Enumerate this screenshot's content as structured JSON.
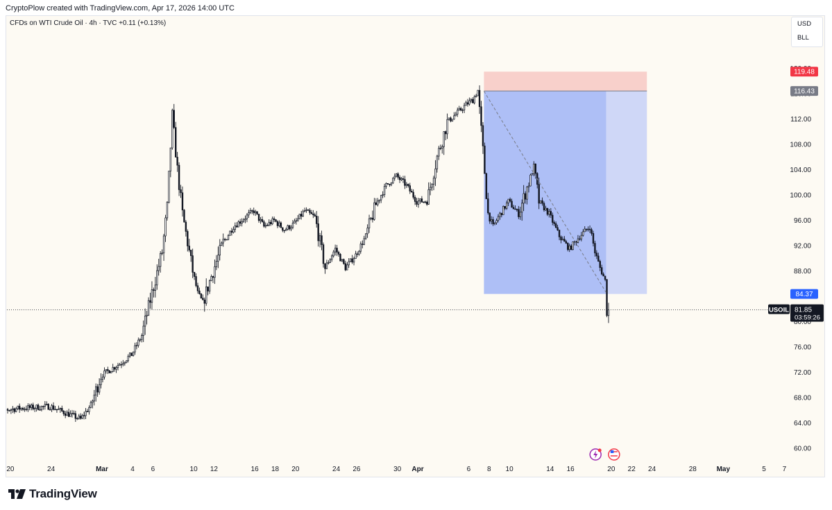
{
  "header": {
    "text": "CryptoPlow created with TradingView.com, Apr 17, 2026 14:00 UTC"
  },
  "chart": {
    "subtitle": "CFDs on WTI Crude Oil · 4h · TVC  +0.11 (+0.13%)",
    "currency_unit": "USD",
    "volume_unit": "BLL"
  },
  "brand": {
    "name": "TradingView"
  },
  "colors": {
    "up_candle": "#ffffff",
    "down_candle": "#131722",
    "wick": "#131722",
    "stop_zone": "#f8d0cb",
    "target_zone": "#aebff6",
    "target_zone_light": "#cfd7f7",
    "stop_label": "#f23645",
    "entry_label": "#787b86",
    "target_label": "#2962ff",
    "price_label": "#131722",
    "background": "#fdfaf3"
  },
  "chart_data": {
    "type": "candlestick",
    "symbol": "USOIL",
    "ylim": [
      58.5,
      122.5
    ],
    "y_ticks": [
      "60.00",
      "64.00",
      "68.00",
      "72.00",
      "76.00",
      "80.00",
      "84.00",
      "88.00",
      "92.00",
      "96.00",
      "100.00",
      "104.00",
      "108.00",
      "112.00",
      "116.00",
      "120.00"
    ],
    "x_ticks": [
      {
        "label": "20",
        "date": "2026-02-20"
      },
      {
        "label": "24",
        "date": "2026-02-24"
      },
      {
        "label": "Mar",
        "date": "2026-03-01"
      },
      {
        "label": "4",
        "date": "2026-03-04"
      },
      {
        "label": "6",
        "date": "2026-03-06"
      },
      {
        "label": "10",
        "date": "2026-03-10"
      },
      {
        "label": "12",
        "date": "2026-03-12"
      },
      {
        "label": "16",
        "date": "2026-03-16"
      },
      {
        "label": "18",
        "date": "2026-03-18"
      },
      {
        "label": "20",
        "date": "2026-03-20"
      },
      {
        "label": "24",
        "date": "2026-03-24"
      },
      {
        "label": "26",
        "date": "2026-03-26"
      },
      {
        "label": "30",
        "date": "2026-03-30"
      },
      {
        "label": "Apr",
        "date": "2026-04-01"
      },
      {
        "label": "6",
        "date": "2026-04-06"
      },
      {
        "label": "8",
        "date": "2026-04-08"
      },
      {
        "label": "10",
        "date": "2026-04-10"
      },
      {
        "label": "14",
        "date": "2026-04-14"
      },
      {
        "label": "16",
        "date": "2026-04-16"
      },
      {
        "label": "20",
        "date": "2026-04-20"
      },
      {
        "label": "22",
        "date": "2026-04-22"
      },
      {
        "label": "24",
        "date": "2026-04-24"
      },
      {
        "label": "28",
        "date": "2026-04-28"
      },
      {
        "label": "May",
        "date": "2026-05-01"
      },
      {
        "label": "5",
        "date": "2026-05-05"
      },
      {
        "label": "7",
        "date": "2026-05-07"
      }
    ],
    "price_path": [
      [
        "2026-02-18",
        65.8
      ],
      [
        "2026-02-21",
        66.3
      ],
      [
        "2026-02-24",
        66.6
      ],
      [
        "2026-02-27",
        64.6
      ],
      [
        "2026-02-28",
        66.8
      ],
      [
        "2026-03-01",
        71.5
      ],
      [
        "2026-03-02",
        72.5
      ],
      [
        "2026-03-03",
        73.5
      ],
      [
        "2026-03-04",
        74.8
      ],
      [
        "2026-03-05",
        77.8
      ],
      [
        "2026-03-06",
        84.5
      ],
      [
        "2026-03-07",
        91.0
      ],
      [
        "2026-03-07 12:00",
        98.0
      ],
      [
        "2026-03-08",
        112.5
      ],
      [
        "2026-03-08 12:00",
        104.0
      ],
      [
        "2026-03-09",
        97.0
      ],
      [
        "2026-03-10",
        88.0
      ],
      [
        "2026-03-10 12:00",
        84.5
      ],
      [
        "2026-03-11",
        83.0
      ],
      [
        "2026-03-12",
        88.0
      ],
      [
        "2026-03-13",
        92.5
      ],
      [
        "2026-03-14",
        95.0
      ],
      [
        "2026-03-16",
        97.5
      ],
      [
        "2026-03-17",
        95.0
      ],
      [
        "2026-03-18",
        96.0
      ],
      [
        "2026-03-19",
        94.5
      ],
      [
        "2026-03-20",
        95.5
      ],
      [
        "2026-03-21",
        97.5
      ],
      [
        "2026-03-22",
        96.5
      ],
      [
        "2026-03-23",
        88.5
      ],
      [
        "2026-03-24",
        91.5
      ],
      [
        "2026-03-25",
        88.5
      ],
      [
        "2026-03-26",
        90.5
      ],
      [
        "2026-03-27",
        93.5
      ],
      [
        "2026-03-28",
        98.5
      ],
      [
        "2026-03-29",
        101.5
      ],
      [
        "2026-03-30",
        103.0
      ],
      [
        "2026-03-31",
        101.5
      ],
      [
        "2026-04-01",
        99.0
      ],
      [
        "2026-04-02",
        99.0
      ],
      [
        "2026-04-03",
        106.0
      ],
      [
        "2026-04-04",
        111.5
      ],
      [
        "2026-04-05",
        113.0
      ],
      [
        "2026-04-06",
        114.5
      ],
      [
        "2026-04-06 12:00",
        115.0
      ],
      [
        "2026-04-07",
        116.5
      ],
      [
        "2026-04-07 12:00",
        107.0
      ],
      [
        "2026-04-08",
        97.0
      ],
      [
        "2026-04-08 12:00",
        95.0
      ],
      [
        "2026-04-09",
        96.5
      ],
      [
        "2026-04-10",
        99.0
      ],
      [
        "2026-04-11",
        97.0
      ],
      [
        "2026-04-12",
        102.0
      ],
      [
        "2026-04-12 12:00",
        104.5
      ],
      [
        "2026-04-13",
        99.0
      ],
      [
        "2026-04-14",
        97.0
      ],
      [
        "2026-04-15",
        93.5
      ],
      [
        "2026-04-16",
        91.5
      ],
      [
        "2026-04-17",
        93.5
      ],
      [
        "2026-04-18",
        95.0
      ],
      [
        "2026-04-18 12:00",
        91.0
      ],
      [
        "2026-04-19",
        88.5
      ],
      [
        "2026-04-19 12:00",
        86.5
      ],
      [
        "2026-04-19 16:00",
        81.85
      ]
    ],
    "position_tool": {
      "type": "short",
      "start_date": "2026-04-07 12:00",
      "end_date": "2026-04-23 12:00",
      "entry": 116.43,
      "stop": 119.48,
      "target": 84.37
    },
    "trend_line": {
      "from": [
        "2026-04-07 12:00",
        116.4
      ],
      "to": [
        "2026-04-19 12:00",
        84.6
      ]
    },
    "current_price": 81.85,
    "countdown": "03:59:26",
    "price_labels": [
      {
        "value": 119.48,
        "text": "119.48",
        "role": "stop"
      },
      {
        "value": 116.43,
        "text": "116.43",
        "role": "entry"
      },
      {
        "value": 84.37,
        "text": "84.37",
        "role": "target"
      }
    ],
    "markers": [
      {
        "date": "2026-04-19",
        "icon": "flash-icon"
      },
      {
        "date": "2026-04-20",
        "icon": "us-flag-icon"
      }
    ]
  }
}
